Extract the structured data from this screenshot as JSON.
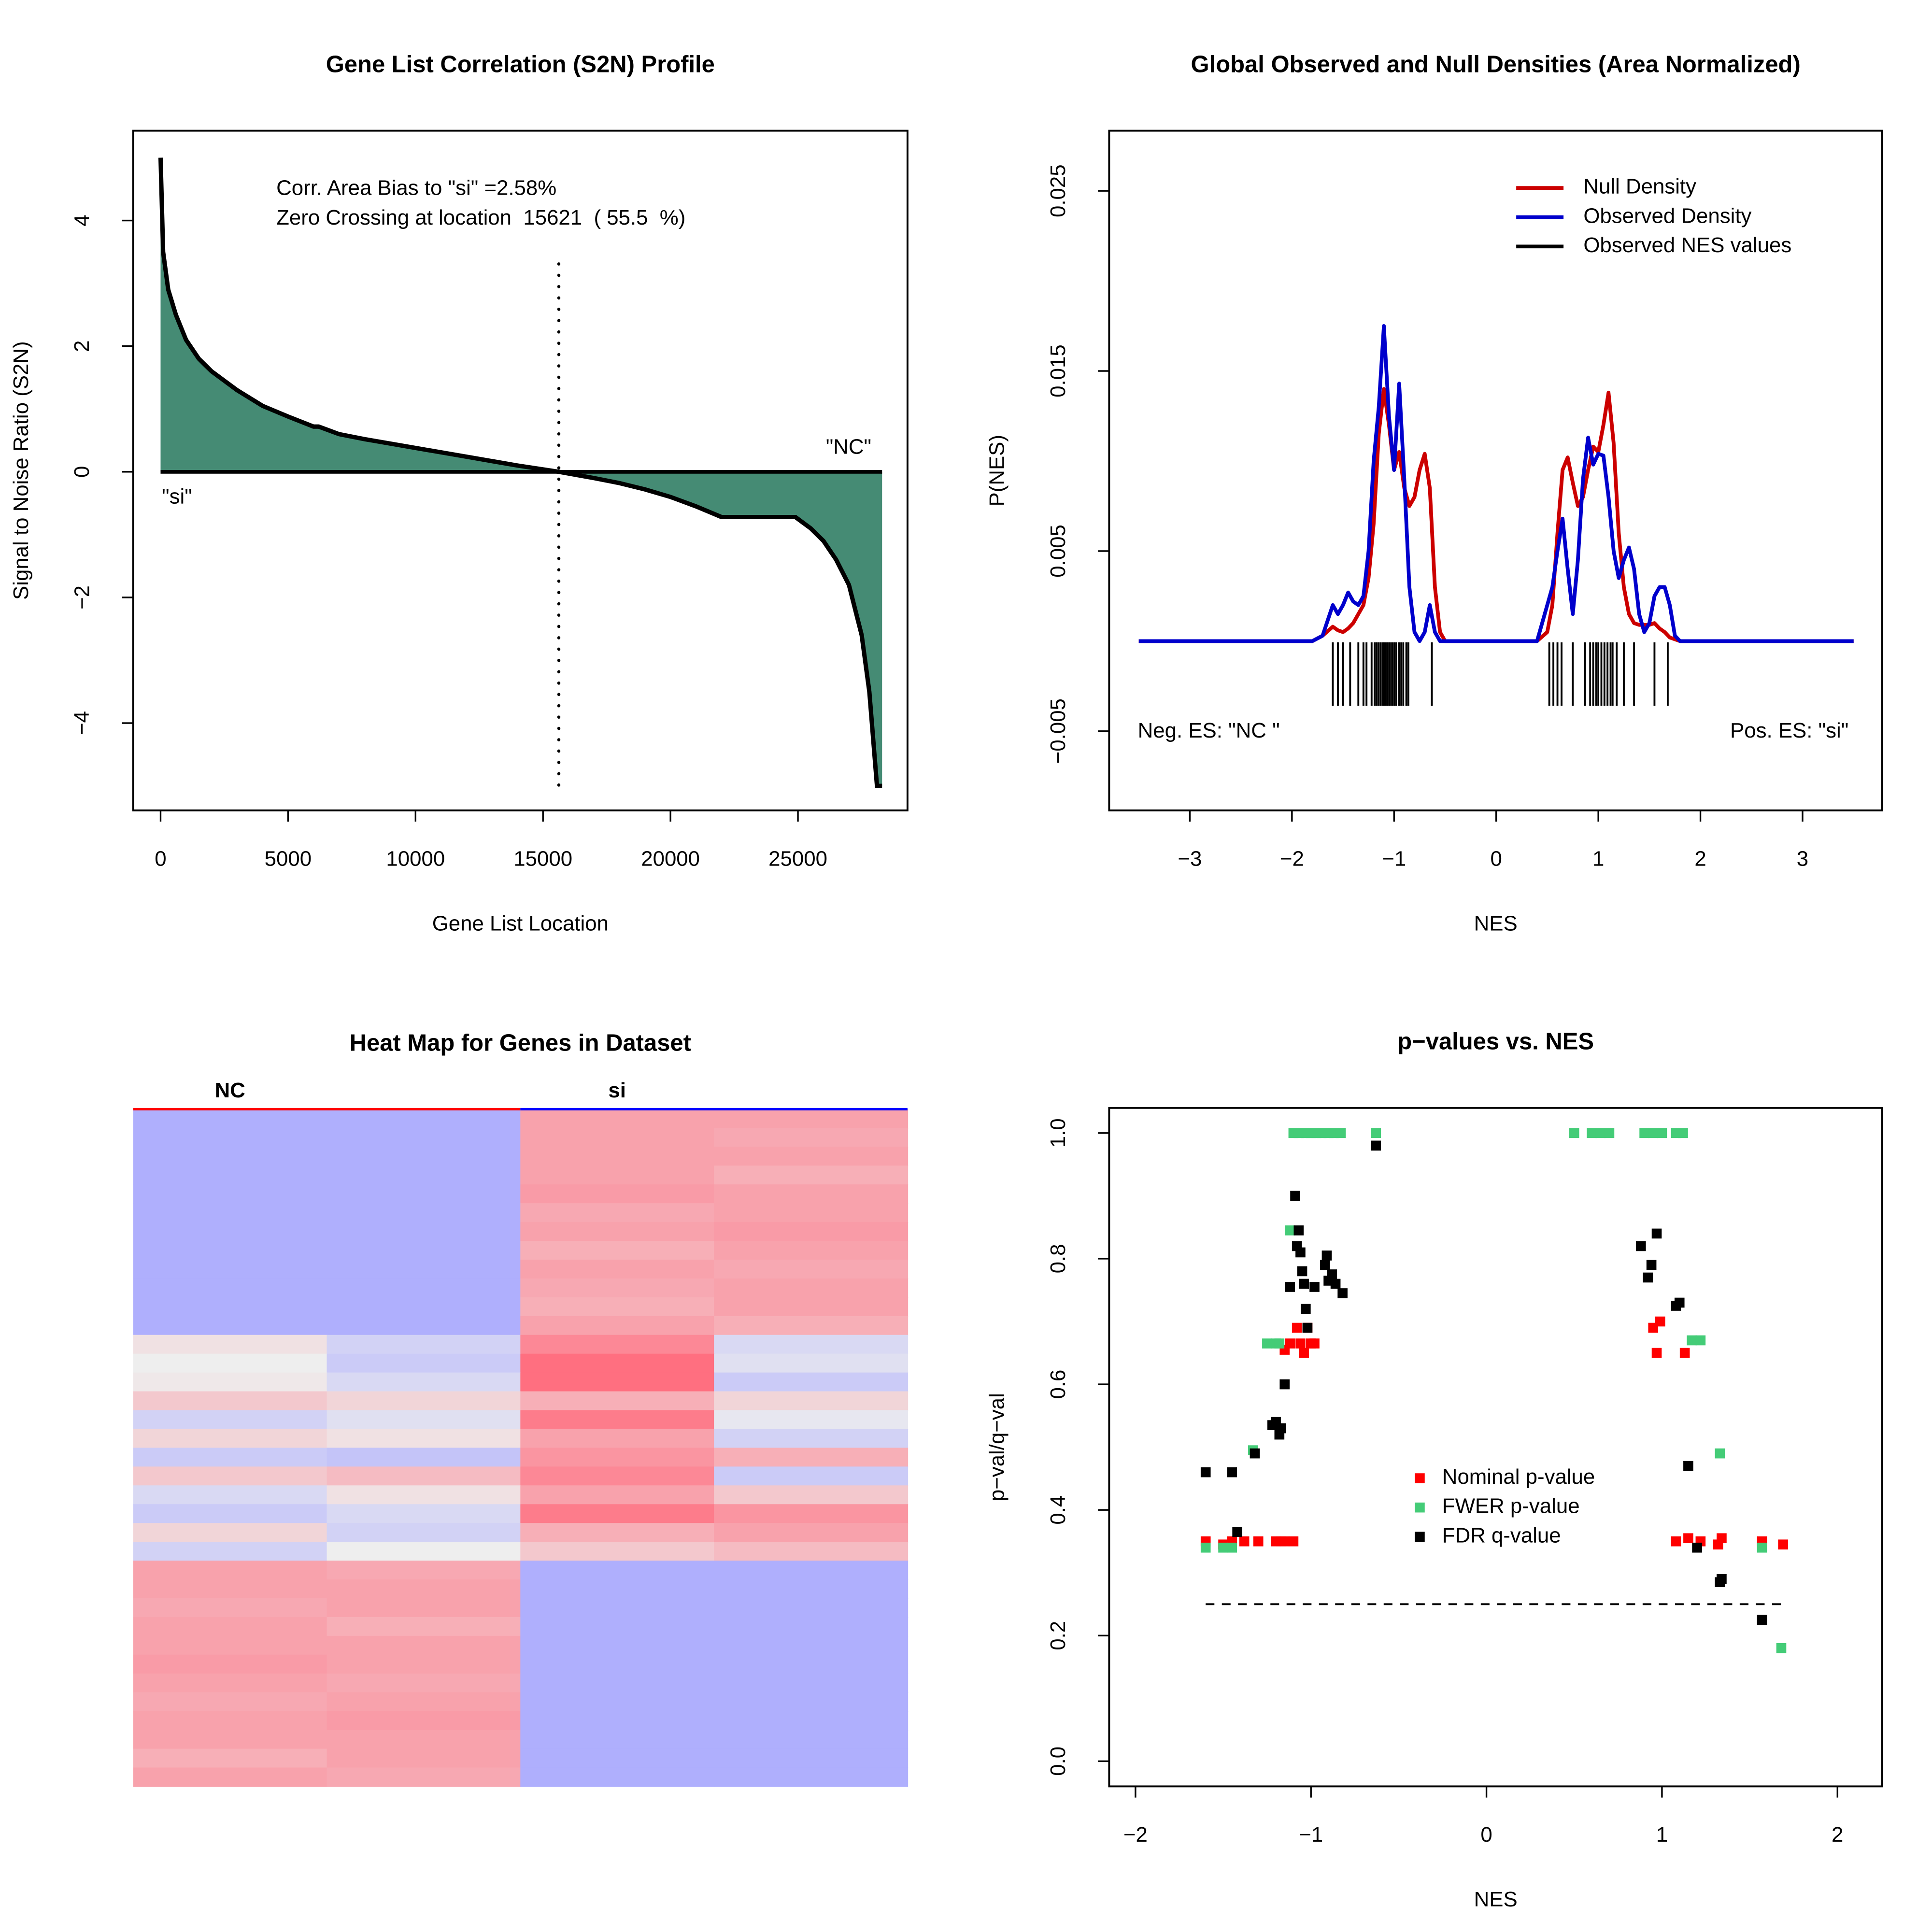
{
  "chart_data": [
    {
      "type": "area",
      "title": "Gene List Correlation (S2N) Profile",
      "xlabel": "Gene List Location",
      "ylabel": "Signal to Noise Ratio (S2N)",
      "annotations": [
        "Corr. Area Bias to \"si\" =2.58%",
        "Zero Crossing at location  15621  ( 55.5  %)",
        "\"si\"",
        "\"NC\""
      ],
      "zero_crossing": 15621,
      "x": [
        0,
        100,
        300,
        600,
        1000,
        1500,
        2000,
        3000,
        4000,
        5000,
        5500,
        6000,
        6200,
        7000,
        8000,
        10000,
        12000,
        14000,
        15621,
        17000,
        18000,
        19000,
        20000,
        21000,
        22000,
        24900,
        25500,
        26000,
        26500,
        27000,
        27500,
        27800,
        28000,
        28100,
        28300
      ],
      "values": [
        5.0,
        3.5,
        2.9,
        2.5,
        2.1,
        1.8,
        1.6,
        1.3,
        1.05,
        0.88,
        0.8,
        0.72,
        0.72,
        0.6,
        0.52,
        0.38,
        0.24,
        0.1,
        0,
        -0.1,
        -0.18,
        -0.28,
        -0.4,
        -0.55,
        -0.72,
        -0.72,
        -0.9,
        -1.1,
        -1.4,
        -1.8,
        -2.6,
        -3.5,
        -4.5,
        -5.0,
        -5.0
      ],
      "color": "#458b74",
      "xlim": [
        -1074,
        29297
      ],
      "xticks": [
        0,
        5000,
        10000,
        15000,
        20000,
        25000
      ],
      "ylim": [
        -5.39,
        5.43
      ],
      "yticks": [
        {
          "value": -4,
          "label": "−4"
        },
        {
          "value": -2,
          "label": "−2"
        },
        0,
        2,
        4
      ]
    },
    {
      "type": "line",
      "title": "Global Observed and Null Densities (Area Normalized)",
      "xlabel": "NES",
      "ylabel": "P(NES)",
      "annotations": [
        "Neg. ES: \"NC \"",
        "Pos. ES: \"si\""
      ],
      "legend": "top-right",
      "x": [
        -3.5,
        -1.8,
        -1.7,
        -1.6,
        -1.55,
        -1.5,
        -1.45,
        -1.4,
        -1.35,
        -1.3,
        -1.25,
        -1.2,
        -1.15,
        -1.1,
        -1.05,
        -1.0,
        -0.95,
        -0.9,
        -0.85,
        -0.8,
        -0.75,
        -0.7,
        -0.65,
        -0.6,
        -0.55,
        -0.5,
        0.4,
        0.5,
        0.55,
        0.6,
        0.65,
        0.7,
        0.75,
        0.8,
        0.85,
        0.9,
        0.95,
        1.0,
        1.05,
        1.1,
        1.15,
        1.2,
        1.25,
        1.3,
        1.35,
        1.4,
        1.45,
        1.5,
        1.55,
        1.6,
        1.65,
        1.7,
        1.75,
        1.8,
        3.5
      ],
      "series": [
        {
          "name": "Null Density",
          "color": "#cc0000",
          "values": [
            0,
            0,
            0.0003,
            0.0008,
            0.0006,
            0.0005,
            0.0007,
            0.001,
            0.0015,
            0.002,
            0.0035,
            0.0065,
            0.0115,
            0.014,
            0.012,
            0.0095,
            0.0105,
            0.0085,
            0.0075,
            0.008,
            0.0095,
            0.0104,
            0.0085,
            0.003,
            0.0005,
            0,
            0,
            0.0005,
            0.002,
            0.006,
            0.0095,
            0.0102,
            0.0088,
            0.0075,
            0.008,
            0.0095,
            0.0108,
            0.0105,
            0.012,
            0.0138,
            0.011,
            0.006,
            0.003,
            0.0015,
            0.001,
            0.0009,
            0.0009,
            0.0009,
            0.001,
            0.0007,
            0.0005,
            0.0002,
            0.0001,
            0,
            0
          ]
        },
        {
          "name": "Observed Density",
          "color": "#0000cc",
          "values": [
            0,
            0,
            0.0003,
            0.002,
            0.0015,
            0.002,
            0.0027,
            0.0022,
            0.002,
            0.0025,
            0.005,
            0.01,
            0.013,
            0.0175,
            0.0125,
            0.0095,
            0.0143,
            0.009,
            0.003,
            0.0005,
            0,
            0.0005,
            0.002,
            0.0005,
            0,
            0,
            0,
            0.002,
            0.003,
            0.005,
            0.0068,
            0.004,
            0.0015,
            0.0045,
            0.009,
            0.0113,
            0.0098,
            0.0104,
            0.0103,
            0.008,
            0.005,
            0.0035,
            0.0045,
            0.0052,
            0.004,
            0.0015,
            0.0005,
            0.001,
            0.0025,
            0.003,
            0.003,
            0.002,
            0.0003,
            0,
            0
          ]
        }
      ],
      "rug": {
        "name": "Observed NES values",
        "color": "#000000",
        "values": [
          -1.6,
          -1.55,
          -1.5,
          -1.43,
          -1.35,
          -1.3,
          -1.27,
          -1.22,
          -1.19,
          -1.17,
          -1.15,
          -1.13,
          -1.11,
          -1.1,
          -1.08,
          -1.06,
          -1.04,
          -1.02,
          -1.0,
          -0.98,
          -0.95,
          -0.93,
          -0.91,
          -0.88,
          -0.86,
          -0.63,
          0.52,
          0.56,
          0.6,
          0.64,
          0.75,
          0.87,
          0.92,
          0.95,
          0.98,
          1.0,
          1.03,
          1.06,
          1.09,
          1.12,
          1.14,
          1.18,
          1.25,
          1.35,
          1.55,
          1.68
        ]
      },
      "xlim": [
        -3.79,
        3.78
      ],
      "xticks": [
        {
          "value": -3,
          "label": "−3"
        },
        {
          "value": -2,
          "label": "−2"
        },
        {
          "value": -1,
          "label": "−1"
        },
        0,
        1,
        2,
        3
      ],
      "ylim": [
        -0.0094,
        0.02834
      ],
      "yticks": [
        {
          "value": -0.005,
          "label": "−0.005"
        },
        0.005,
        0.015,
        0.025
      ]
    },
    {
      "type": "heatmap",
      "title": "Heat Map for Genes in Dataset",
      "groups": [
        {
          "name": "NC",
          "color": "#ff0000",
          "columns": 2
        },
        {
          "name": "si",
          "color": "#0000ff",
          "columns": 2
        }
      ],
      "zlim": [
        -1,
        1
      ],
      "colors": {
        "low": "#a8a8ff",
        "mid": "#eeeeee",
        "high": "#ff6f80"
      },
      "matrix": [
        [
          -0.9,
          -0.9,
          0.6,
          0.6
        ],
        [
          -0.9,
          -0.9,
          0.6,
          0.55
        ],
        [
          -0.9,
          -0.9,
          0.6,
          0.6
        ],
        [
          -0.9,
          -0.9,
          0.6,
          0.5
        ],
        [
          -0.9,
          -0.9,
          0.65,
          0.6
        ],
        [
          -0.9,
          -0.9,
          0.55,
          0.6
        ],
        [
          -0.9,
          -0.9,
          0.6,
          0.65
        ],
        [
          -0.9,
          -0.9,
          0.5,
          0.6
        ],
        [
          -0.9,
          -0.9,
          0.6,
          0.55
        ],
        [
          -0.9,
          -0.9,
          0.55,
          0.6
        ],
        [
          -0.9,
          -0.9,
          0.5,
          0.6
        ],
        [
          -0.9,
          -0.9,
          0.6,
          0.5
        ],
        [
          0.1,
          -0.4,
          0.8,
          -0.3
        ],
        [
          0,
          -0.5,
          1,
          -0.2
        ],
        [
          0.05,
          -0.3,
          1,
          -0.5
        ],
        [
          0.3,
          0.2,
          0.5,
          0.2
        ],
        [
          -0.4,
          -0.2,
          0.9,
          -0.1
        ],
        [
          0.2,
          0.1,
          0.6,
          -0.4
        ],
        [
          -0.5,
          -0.6,
          0.7,
          0.5
        ],
        [
          0.3,
          0.4,
          0.8,
          -0.5
        ],
        [
          -0.3,
          0.1,
          0.6,
          0.3
        ],
        [
          -0.5,
          -0.3,
          0.9,
          0.7
        ],
        [
          0.2,
          -0.4,
          0.5,
          0.6
        ],
        [
          -0.4,
          0,
          0.3,
          0.4
        ],
        [
          0.6,
          0.55,
          -0.9,
          -0.9
        ],
        [
          0.6,
          0.6,
          -0.9,
          -0.9
        ],
        [
          0.55,
          0.6,
          -0.9,
          -0.9
        ],
        [
          0.6,
          0.5,
          -0.9,
          -0.9
        ],
        [
          0.6,
          0.6,
          -0.9,
          -0.9
        ],
        [
          0.65,
          0.6,
          -0.9,
          -0.9
        ],
        [
          0.6,
          0.55,
          -0.9,
          -0.9
        ],
        [
          0.55,
          0.6,
          -0.9,
          -0.9
        ],
        [
          0.6,
          0.65,
          -0.9,
          -0.9
        ],
        [
          0.6,
          0.6,
          -0.9,
          -0.9
        ],
        [
          0.5,
          0.6,
          -0.9,
          -0.9
        ],
        [
          0.6,
          0.55,
          -0.9,
          -0.9
        ]
      ]
    },
    {
      "type": "scatter",
      "title": "p−values vs. NES",
      "xlabel": "NES",
      "ylabel": "p−val/q−val",
      "legend": "center",
      "threshold": 0.25,
      "series": [
        {
          "name": "Nominal p-value",
          "color": "#ff0000",
          "x": [
            -1.6,
            -1.5,
            -1.45,
            -1.38,
            -1.3,
            -1.2,
            -1.17,
            -1.15,
            -1.1,
            -1.15,
            -1.12,
            -1.08,
            -1.06,
            -1.04,
            -1.02,
            -1.0,
            -0.98,
            0.95,
            0.99,
            0.97,
            1.13,
            1.08,
            1.15,
            1.22,
            1.32,
            1.34,
            1.57,
            1.69
          ],
          "values": [
            0.35,
            0.345,
            0.35,
            0.35,
            0.35,
            0.35,
            0.35,
            0.35,
            0.35,
            0.655,
            0.665,
            0.69,
            0.665,
            0.65,
            0.69,
            0.665,
            0.665,
            0.69,
            0.7,
            0.65,
            0.65,
            0.35,
            0.355,
            0.35,
            0.345,
            0.355,
            0.35,
            0.345
          ]
        },
        {
          "name": "FWER p-value",
          "color": "#44cc77",
          "x": [
            -1.6,
            -1.5,
            -1.45,
            -1.33,
            -1.25,
            -1.2,
            -1.18,
            -1.12,
            -1.1,
            -1.07,
            -1.03,
            -1.0,
            -0.97,
            -0.94,
            -0.9,
            -0.87,
            -0.83,
            -0.63,
            0.5,
            0.6,
            0.65,
            0.7,
            0.9,
            0.95,
            1.0,
            1.08,
            1.12,
            1.17,
            1.22,
            1.33,
            1.57,
            1.68
          ],
          "values": [
            0.34,
            0.34,
            0.34,
            0.495,
            0.665,
            0.665,
            0.665,
            0.845,
            1.0,
            1.0,
            1.0,
            1.0,
            1.0,
            1.0,
            1.0,
            1.0,
            1.0,
            1.0,
            1.0,
            1.0,
            1.0,
            1.0,
            1.0,
            1.0,
            1.0,
            1.0,
            1.0,
            0.67,
            0.67,
            0.49,
            0.34,
            0.18
          ]
        },
        {
          "name": "FDR q-value",
          "color": "#000000",
          "x": [
            -1.6,
            -1.45,
            -1.42,
            -1.32,
            -1.22,
            -1.2,
            -1.18,
            -1.17,
            -1.15,
            -1.12,
            -1.09,
            -1.08,
            -1.07,
            -1.06,
            -1.05,
            -1.04,
            -1.03,
            -1.02,
            -0.98,
            -0.92,
            -0.91,
            -0.9,
            -0.88,
            -0.86,
            -0.82,
            -0.63,
            0.88,
            0.92,
            0.94,
            0.97,
            1.08,
            1.1,
            1.15,
            1.2,
            1.33,
            1.34,
            1.57
          ],
          "values": [
            0.46,
            0.46,
            0.365,
            0.49,
            0.535,
            0.54,
            0.52,
            0.53,
            0.6,
            0.755,
            0.9,
            0.82,
            0.845,
            0.81,
            0.78,
            0.76,
            0.72,
            0.69,
            0.755,
            0.79,
            0.805,
            0.765,
            0.775,
            0.76,
            0.745,
            0.98,
            0.82,
            0.77,
            0.79,
            0.84,
            0.725,
            0.73,
            0.47,
            0.34,
            0.285,
            0.29,
            0.225
          ]
        }
      ],
      "xlim": [
        -2.15,
        2.255
      ],
      "xticks": [
        {
          "value": -2,
          "label": "−2"
        },
        {
          "value": -1,
          "label": "−1"
        },
        0,
        1,
        2
      ],
      "ylim": [
        -0.04,
        1.04
      ],
      "yticks": [
        {
          "value": 0,
          "label": "0.0"
        },
        0.2,
        0.4,
        0.6,
        0.8,
        {
          "value": 1,
          "label": "1.0"
        }
      ]
    }
  ]
}
